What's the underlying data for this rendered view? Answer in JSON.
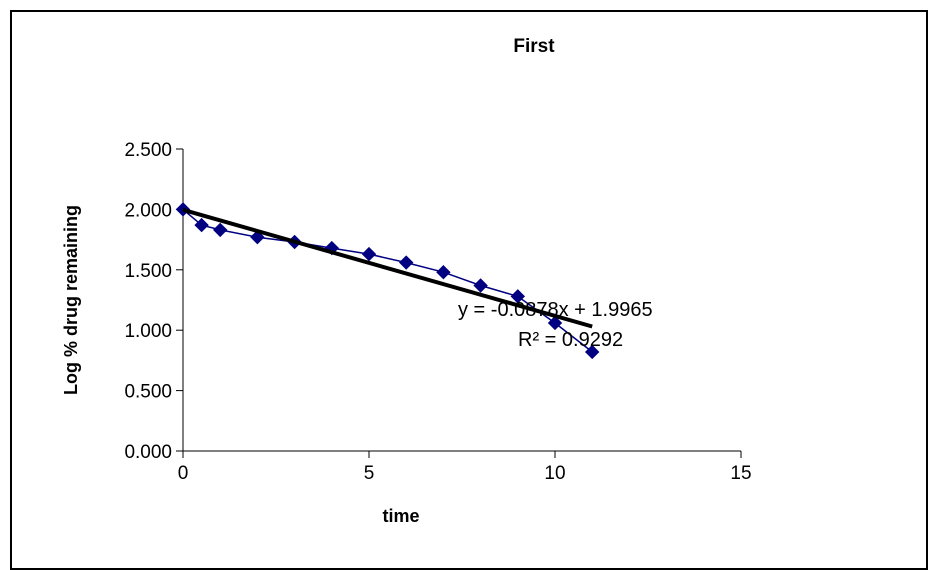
{
  "chart_data": {
    "type": "scatter",
    "title": "First",
    "xlabel": "time",
    "ylabel": "Log % drug remaining",
    "xlim": [
      0,
      15
    ],
    "ylim": [
      0,
      2.5
    ],
    "xticks": [
      "0",
      "5",
      "10",
      "15"
    ],
    "yticks": [
      "0.000",
      "0.500",
      "1.000",
      "1.500",
      "2.000",
      "2.500"
    ],
    "grid": false,
    "legend": "none",
    "series": [
      {
        "x": [
          0,
          0.5,
          1,
          2,
          3,
          4,
          5,
          6,
          7,
          8,
          9,
          10,
          11
        ],
        "y": [
          2.0,
          1.87,
          1.83,
          1.77,
          1.73,
          1.68,
          1.63,
          1.56,
          1.48,
          1.37,
          1.28,
          1.06,
          0.82
        ],
        "color": "#000080",
        "marker": "diamond"
      }
    ],
    "trendline": {
      "slope": -0.0878,
      "intercept": 1.9965,
      "x_range": [
        0,
        11
      ],
      "color": "#000000",
      "equation": "y = -0.0878x + 1.9965",
      "r_squared": "R² = 0.9292"
    }
  }
}
